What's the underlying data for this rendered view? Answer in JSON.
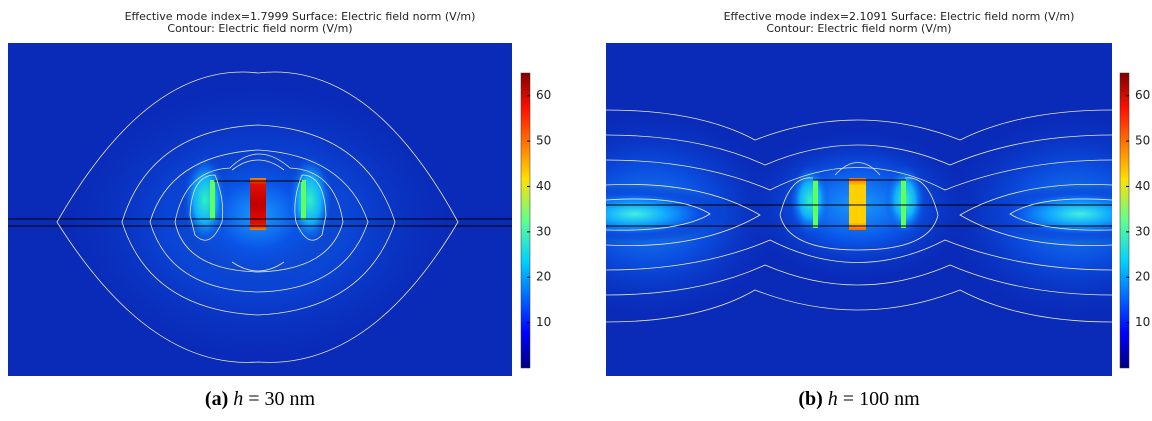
{
  "panels": [
    {
      "title": [
        "Effective mode index=1.7999  Surface: Electric field norm (V/m)",
        "Contour: Electric field norm (V/m)"
      ],
      "colorbar": {
        "lim": [
          0,
          65
        ],
        "ticks": [
          10,
          20,
          30,
          40,
          50,
          60
        ]
      },
      "caption": {
        "label": "(a)",
        "symbol": "h",
        "rest": "= 30 nm"
      }
    },
    {
      "title": [
        "Effective mode index=2.1091 Surface: Electric field norm (V/m)",
        "Contour: Electric field norm (V/m)"
      ],
      "colorbar": {
        "lim": [
          0,
          65
        ],
        "ticks": [
          10,
          20,
          30,
          40,
          50,
          60
        ]
      },
      "caption": {
        "label": "(b)",
        "symbol": "h",
        "rest": "= 100 nm"
      }
    }
  ]
}
